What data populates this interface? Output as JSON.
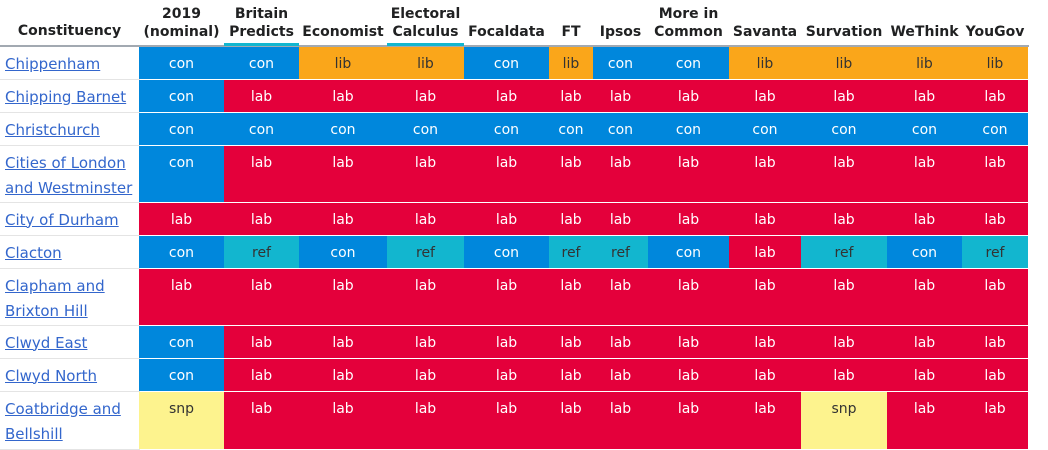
{
  "table": {
    "headers": [
      {
        "id": "constituency",
        "lines": [
          "Constituency"
        ]
      },
      {
        "id": "2019",
        "lines": [
          "2019",
          "(nominal)"
        ]
      },
      {
        "id": "britain-predicts",
        "lines": [
          "Britain",
          "Predicts"
        ]
      },
      {
        "id": "economist",
        "lines": [
          "Economist"
        ]
      },
      {
        "id": "electoral-calculus",
        "lines": [
          "Electoral",
          "Calculus"
        ]
      },
      {
        "id": "focaldata",
        "lines": [
          "Focaldata"
        ]
      },
      {
        "id": "ft",
        "lines": [
          "FT"
        ]
      },
      {
        "id": "ipsos",
        "lines": [
          "Ipsos"
        ]
      },
      {
        "id": "more-in-common",
        "lines": [
          "More in",
          "Common"
        ]
      },
      {
        "id": "savanta",
        "lines": [
          "Savanta"
        ]
      },
      {
        "id": "survation",
        "lines": [
          "Survation"
        ]
      },
      {
        "id": "wethink",
        "lines": [
          "WeThink"
        ]
      },
      {
        "id": "yougov",
        "lines": [
          "YouGov"
        ]
      }
    ],
    "rows": [
      {
        "name": "Chippenham",
        "values": [
          "con",
          "con",
          "lib",
          "lib",
          "con",
          "lib",
          "con",
          "con",
          "lib",
          "lib",
          "lib",
          "lib"
        ]
      },
      {
        "name": "Chipping Barnet",
        "values": [
          "con",
          "lab",
          "lab",
          "lab",
          "lab",
          "lab",
          "lab",
          "lab",
          "lab",
          "lab",
          "lab",
          "lab"
        ]
      },
      {
        "name": "Christchurch",
        "values": [
          "con",
          "con",
          "con",
          "con",
          "con",
          "con",
          "con",
          "con",
          "con",
          "con",
          "con",
          "con"
        ]
      },
      {
        "name": "Cities of London and Westminster",
        "name_lines": [
          "Cities of London",
          "and Westminster"
        ],
        "values": [
          "con",
          "lab",
          "lab",
          "lab",
          "lab",
          "lab",
          "lab",
          "lab",
          "lab",
          "lab",
          "lab",
          "lab"
        ]
      },
      {
        "name": "City of Durham",
        "values": [
          "lab",
          "lab",
          "lab",
          "lab",
          "lab",
          "lab",
          "lab",
          "lab",
          "lab",
          "lab",
          "lab",
          "lab"
        ]
      },
      {
        "name": "Clacton",
        "values": [
          "con",
          "ref",
          "con",
          "ref",
          "con",
          "ref",
          "ref",
          "con",
          "lab",
          "ref",
          "con",
          "ref"
        ]
      },
      {
        "name": "Clapham and Brixton Hill",
        "name_lines": [
          "Clapham and",
          "Brixton Hill"
        ],
        "values": [
          "lab",
          "lab",
          "lab",
          "lab",
          "lab",
          "lab",
          "lab",
          "lab",
          "lab",
          "lab",
          "lab",
          "lab"
        ]
      },
      {
        "name": "Clwyd East",
        "values": [
          "con",
          "lab",
          "lab",
          "lab",
          "lab",
          "lab",
          "lab",
          "lab",
          "lab",
          "lab",
          "lab",
          "lab"
        ]
      },
      {
        "name": "Clwyd North",
        "values": [
          "con",
          "lab",
          "lab",
          "lab",
          "lab",
          "lab",
          "lab",
          "lab",
          "lab",
          "lab",
          "lab",
          "lab"
        ]
      },
      {
        "name": "Coatbridge and Bellshill",
        "name_lines": [
          "Coatbridge and",
          "Bellshill"
        ],
        "values": [
          "snp",
          "lab",
          "lab",
          "lab",
          "lab",
          "lab",
          "lab",
          "lab",
          "lab",
          "snp",
          "lab",
          "lab"
        ]
      }
    ]
  },
  "party_colors": {
    "con": "#0087dc",
    "lab": "#e4003b",
    "lib": "#faa61a",
    "ref": "#12b6cf",
    "snp": "#fdf38e"
  }
}
